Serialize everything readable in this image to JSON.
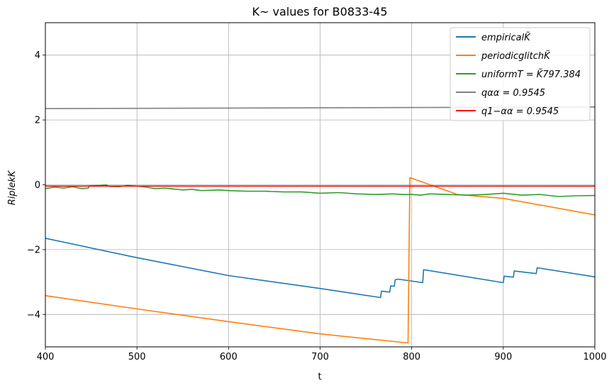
{
  "chart_data": {
    "type": "line",
    "title": "K~ values for B0833-45",
    "xlabel": "t",
    "ylabel": "RiplekK",
    "xlim": [
      400,
      1000
    ],
    "ylim": [
      -5,
      5
    ],
    "xticks": [
      400,
      500,
      600,
      700,
      800,
      900,
      1000
    ],
    "yticks": [
      -4,
      -2,
      0,
      2,
      4
    ],
    "ytick_labels": [
      "−4",
      "−2",
      "0",
      "2",
      "4"
    ],
    "grid": true,
    "legend_position": "top-right",
    "series": [
      {
        "name": "empiricalK̃",
        "color": "#1f77b4",
        "x": [
          400,
          500,
          600,
          700,
          766,
          767,
          776,
          777,
          781,
          782,
          784,
          785,
          812,
          813,
          900,
          901,
          911,
          912,
          936,
          937,
          1000
        ],
        "y": [
          -1.65,
          -2.25,
          -2.8,
          -3.2,
          -3.48,
          -3.28,
          -3.31,
          -3.12,
          -3.13,
          -2.93,
          -2.92,
          -2.91,
          -3.02,
          -2.62,
          -3.02,
          -2.82,
          -2.85,
          -2.66,
          -2.74,
          -2.56,
          -2.84
        ]
      },
      {
        "name": "periodicglitchK̃",
        "color": "#ff7f0e",
        "x": [
          400,
          500,
          600,
          700,
          796,
          798,
          850,
          900,
          1000
        ],
        "y": [
          -3.42,
          -3.83,
          -4.22,
          -4.6,
          -4.88,
          0.22,
          -0.3,
          -0.42,
          -0.93
        ]
      },
      {
        "name": "uniformT = K̃797.384",
        "color": "#2ca02c",
        "x": [
          400,
          410,
          420,
          430,
          440,
          447,
          448,
          460,
          466,
          470,
          480,
          490,
          500,
          510,
          520,
          530,
          540,
          550,
          560,
          570,
          580,
          590,
          600,
          620,
          640,
          660,
          680,
          700,
          720,
          740,
          760,
          780,
          790,
          800,
          810,
          820,
          840,
          860,
          880,
          900,
          920,
          940,
          960,
          980,
          1000
        ],
        "y": [
          -0.12,
          -0.07,
          -0.1,
          -0.06,
          -0.12,
          -0.1,
          -0.03,
          -0.02,
          0.0,
          -0.05,
          -0.06,
          -0.02,
          -0.04,
          -0.07,
          -0.12,
          -0.1,
          -0.13,
          -0.16,
          -0.14,
          -0.18,
          -0.17,
          -0.16,
          -0.18,
          -0.2,
          -0.2,
          -0.22,
          -0.22,
          -0.26,
          -0.24,
          -0.28,
          -0.3,
          -0.28,
          -0.3,
          -0.3,
          -0.32,
          -0.28,
          -0.3,
          -0.32,
          -0.3,
          -0.26,
          -0.32,
          -0.3,
          -0.36,
          -0.34,
          -0.33
        ]
      },
      {
        "name": "qαα = 0.9545",
        "color": "#808080",
        "x": [
          400,
          1000
        ],
        "y": [
          2.35,
          2.4
        ]
      },
      {
        "name": "q1−αα = 0.9545",
        "color": "#ff0000",
        "x": [
          400,
          1000
        ],
        "y": [
          -0.04,
          -0.04
        ]
      }
    ]
  }
}
